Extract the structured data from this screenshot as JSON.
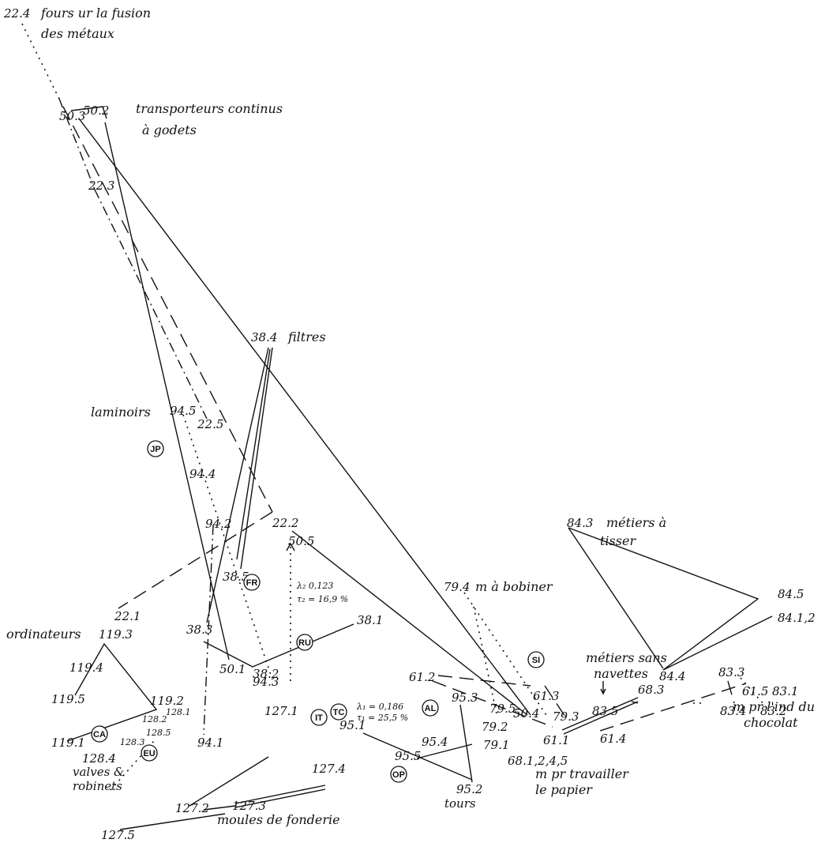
{
  "diagram": {
    "nodes": {
      "n22_4": "22.4",
      "n50_3": "50.3",
      "n50_2": "50.2",
      "n22_3": "22.3",
      "n38_4": "38.4",
      "n94_5": "94.5",
      "n22_5": "22.5",
      "n94_4": "94.4",
      "n94_2": "94.2",
      "n22_2": "22.2",
      "n50_5": "50.5",
      "n38_5": "38.5",
      "n22_1": "22.1",
      "n119_3": "119.3",
      "n119_4": "119.4",
      "n119_5": "119.5",
      "n119_2": "119.2",
      "n119_1": "119.1",
      "n38_3": "38.3",
      "n38_2": "38.2",
      "n38_1": "38.1",
      "n94_3": "94.3",
      "n50_1": "50.1",
      "n94_1": "94.1",
      "n128_1": "128.1",
      "n128_2": "128.2",
      "n128_5": "128.5",
      "n128_3": "128.3",
      "n128_4": "128.4",
      "n127_1": "127.1",
      "n127_2": "127.2",
      "n127_3": "127.3",
      "n127_4": "127.4",
      "n127_5": "127.5",
      "n95_1": "95.1",
      "n95_2": "95.2",
      "n95_3": "95.3",
      "n95_4": "95.4",
      "n95_5": "95.5",
      "n79_4": "79.4",
      "n61_2": "61.2",
      "n79_5": "79.5",
      "n50_4": "50.4",
      "n61_3": "61.3",
      "n79_2": "79.2",
      "n79_3": "79.3",
      "n79_1": "79.1",
      "n61_1": "61.1",
      "n61_4": "61.4",
      "n68_3": "68.3",
      "n68_124": "68.1,2,4,5",
      "n84_3": "84.3",
      "n84_5": "84.5",
      "n84_12": "84.1,2",
      "n84_4": "84.4",
      "n83_3": "83.3",
      "n83_1": "83.1",
      "n83_4": "83.4",
      "n83_2": "83.2",
      "n83_5": "83.5",
      "n61_5": "61.5"
    },
    "labels": {
      "fours_1": "fours ur la fusion",
      "fours_2": "des métaux",
      "transp_1": "transporteurs continus",
      "transp_2": "à godets",
      "filtres": "filtres",
      "laminoirs": "laminoirs",
      "ordinateurs": "ordinateurs",
      "valves_1": "valves &",
      "valves_2": "robinets",
      "moules": "moules de fonderie",
      "tours": "tours",
      "bobiner": "m à bobiner",
      "papier_1": "m pr travailler",
      "papier_2": "le papier",
      "tisser_1": "métiers à",
      "tisser_2": "tisser",
      "sans_1": "métiers sans",
      "sans_2": "navettes",
      "choc_1": "m pr l'ind du",
      "choc_2": "chocolat"
    },
    "stats": {
      "lambda2": "λ₂  0,123",
      "tau2": "τ₂ = 16,9 %",
      "lambda1": "λ₁ = 0,186",
      "tau1": "τ₁ = 25,5 %"
    },
    "countries": {
      "JP": "JP",
      "FR": "FR",
      "RU": "RU",
      "IT": "IT",
      "TC": "TC",
      "AL": "AL",
      "OP": "OP",
      "SI": "SI",
      "CA": "CA",
      "EU": "EU"
    }
  }
}
